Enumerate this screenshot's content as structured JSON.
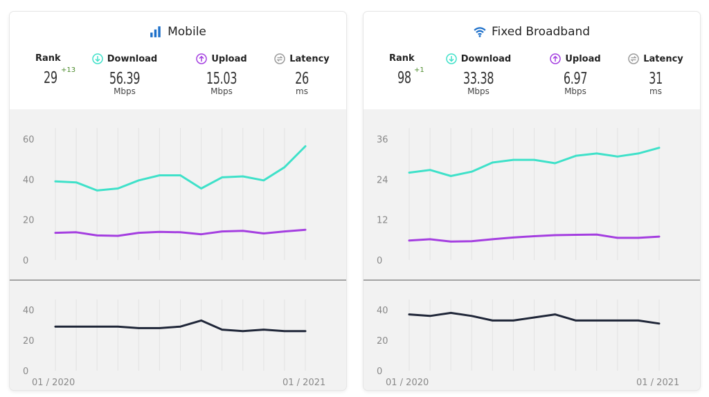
{
  "chart_data": [
    {
      "type": "line",
      "title": "Mobile",
      "icon": "signal-bars-icon",
      "stats": {
        "rank": {
          "label": "Rank",
          "value": "29",
          "change": "+13"
        },
        "download": {
          "label": "Download",
          "value": "56.39",
          "unit": "Mbps",
          "icon": "download-arrow-icon"
        },
        "upload": {
          "label": "Upload",
          "value": "15.03",
          "unit": "Mbps",
          "icon": "upload-arrow-icon"
        },
        "latency": {
          "label": "Latency",
          "value": "26",
          "unit": "ms",
          "icon": "latency-icon"
        }
      },
      "x_labels": {
        "start": "01 / 2020",
        "end": "01 / 2021"
      },
      "speed": {
        "ylim": [
          0,
          60
        ],
        "yticks": [
          0,
          20,
          40,
          60
        ],
        "series": [
          {
            "name": "Download",
            "color": "#3fe1c9",
            "values": [
              39,
              38.5,
              34.5,
              35.5,
              39.5,
              42,
              42,
              35.5,
              41,
              41.5,
              39.5,
              46,
              56.39
            ]
          },
          {
            "name": "Upload",
            "color": "#a43ee0",
            "values": [
              13.5,
              13.8,
              12.2,
              12,
              13.5,
              14,
              13.8,
              12.8,
              14.2,
              14.5,
              13.2,
              14.2,
              15.03
            ]
          }
        ]
      },
      "latency": {
        "ylim": [
          0,
          40
        ],
        "yticks": [
          0,
          20,
          40
        ],
        "series": [
          {
            "name": "Latency",
            "color": "#1f2638",
            "values": [
              29,
              29,
              29,
              29,
              28,
              28,
              29,
              33,
              27,
              26,
              27,
              26,
              26
            ]
          }
        ]
      }
    },
    {
      "type": "line",
      "title": "Fixed Broadband",
      "icon": "wifi-icon",
      "stats": {
        "rank": {
          "label": "Rank",
          "value": "98",
          "change": "+1"
        },
        "download": {
          "label": "Download",
          "value": "33.38",
          "unit": "Mbps",
          "icon": "download-arrow-icon"
        },
        "upload": {
          "label": "Upload",
          "value": "6.97",
          "unit": "Mbps",
          "icon": "upload-arrow-icon"
        },
        "latency": {
          "label": "Latency",
          "value": "31",
          "unit": "ms",
          "icon": "latency-icon"
        }
      },
      "x_labels": {
        "start": "01 / 2020",
        "end": "01 / 2021"
      },
      "speed": {
        "ylim": [
          0,
          36
        ],
        "yticks": [
          0,
          12,
          24,
          36
        ],
        "series": [
          {
            "name": "Download",
            "color": "#3fe1c9",
            "values": [
              26,
              26.8,
              25,
              26.3,
              29,
              29.8,
              29.8,
              28.8,
              31,
              31.7,
              30.8,
              31.7,
              33.38
            ]
          },
          {
            "name": "Upload",
            "color": "#a43ee0",
            "values": [
              5.8,
              6.2,
              5.5,
              5.6,
              6.2,
              6.7,
              7.1,
              7.4,
              7.5,
              7.6,
              6.6,
              6.6,
              6.97
            ]
          }
        ]
      },
      "latency": {
        "ylim": [
          0,
          40
        ],
        "yticks": [
          0,
          20,
          40
        ],
        "series": [
          {
            "name": "Latency",
            "color": "#1f2638",
            "values": [
              37,
              36,
              38,
              36,
              33,
              33,
              35,
              37,
              33,
              33,
              33,
              33,
              31
            ]
          }
        ]
      }
    }
  ]
}
